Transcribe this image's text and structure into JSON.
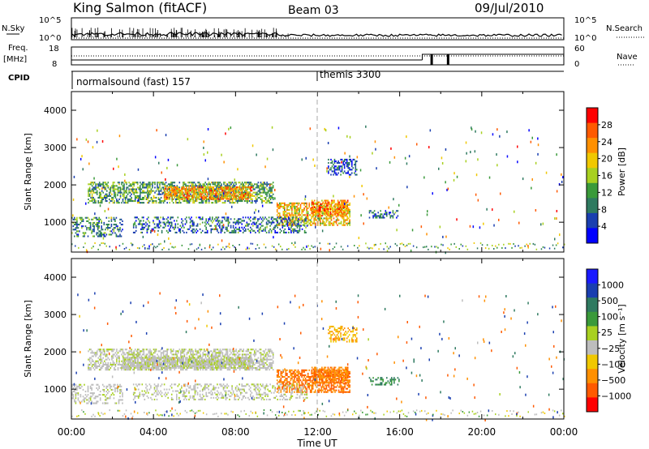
{
  "header": {
    "site": "King Salmon (fitACF)",
    "beam": "Beam 03",
    "date": "09/Jul/2010"
  },
  "summary_panels": {
    "nsky_label": "N.Sky",
    "nsky_ticks": [
      "10^5",
      "10^0"
    ],
    "nsearch_label": "N.Search",
    "nsearch_ticks": [
      "10^5",
      "10^0"
    ],
    "freq_label_top": "Freq.",
    "freq_label_unit": "[MHz]",
    "freq_ticks": [
      "18",
      "8"
    ],
    "nave_label": "Nave",
    "nave_ticks": [
      "60",
      "0"
    ],
    "cpid_label": "CPID",
    "cpid_segments": [
      {
        "label": "normalsound (fast) 157",
        "start_hour": 0,
        "end_hour": 12
      },
      {
        "label": "themis 3300",
        "start_hour": 12,
        "end_hour": 24
      }
    ]
  },
  "colors": {
    "power_scale": [
      "#0000ff",
      "#1a3fb0",
      "#2f7a60",
      "#3a9a3a",
      "#a8d020",
      "#f0c800",
      "#ff9000",
      "#ff5a00",
      "#ff0000"
    ],
    "velocity_scale": [
      "#1a1aff",
      "#1a3fb0",
      "#2f7a60",
      "#3a9a3a",
      "#a8d020",
      "#bdbdbd",
      "#f0c800",
      "#ff9000",
      "#ff5a00",
      "#ff0000"
    ],
    "ground_scatter": "#bdbdbd",
    "marker_line": "#aaaaaa"
  },
  "chart_data": [
    {
      "type": "heatmap",
      "name": "power",
      "ylabel": "Slant Range [km]",
      "colorbar_label": "Power [dB]",
      "colorbar_ticks": [
        "28",
        "24",
        "20",
        "16",
        "12",
        "8",
        "4"
      ],
      "colorbar_range": [
        0,
        32
      ],
      "ylim": [
        200,
        4500
      ],
      "y_ticks": [
        "4000",
        "3000",
        "2000",
        "1000"
      ],
      "xlim": [
        0,
        24
      ],
      "regions": [
        {
          "t0": 0.8,
          "t1": 9.8,
          "r0": 1500,
          "r1": 2050,
          "value": 12,
          "density": 0.55
        },
        {
          "t0": 4.5,
          "t1": 8.8,
          "r0": 1600,
          "r1": 1950,
          "value": 22,
          "density": 0.65
        },
        {
          "t0": 10.0,
          "t1": 13.6,
          "r0": 900,
          "r1": 1500,
          "value": 20,
          "density": 0.6
        },
        {
          "t0": 11.7,
          "t1": 13.5,
          "r0": 1150,
          "r1": 1600,
          "value": 24,
          "density": 0.6
        },
        {
          "t0": 3.0,
          "t1": 11.5,
          "r0": 700,
          "r1": 1150,
          "value": 8,
          "density": 0.35
        },
        {
          "t0": 0.0,
          "t1": 2.5,
          "r0": 600,
          "r1": 1100,
          "value": 10,
          "density": 0.35
        },
        {
          "t0": 12.5,
          "t1": 13.9,
          "r0": 2250,
          "r1": 2700,
          "value": 6,
          "density": 0.45
        },
        {
          "t0": 14.5,
          "t1": 16.0,
          "r0": 1100,
          "r1": 1300,
          "value": 8,
          "density": 0.45
        }
      ]
    },
    {
      "type": "heatmap",
      "name": "velocity",
      "ylabel": "Slant Range [km]",
      "colorbar_label": "Velocity [m s⁻¹]",
      "colorbar_ticks": [
        "1000",
        "500",
        "100",
        "25",
        "−25",
        "−100",
        "−500",
        "−1000"
      ],
      "ylim": [
        200,
        4500
      ],
      "y_ticks": [
        "4000",
        "3000",
        "2000",
        "1000"
      ],
      "xlim": [
        0,
        24
      ],
      "x_ticks": [
        "00:00",
        "04:00",
        "08:00",
        "12:00",
        "16:00",
        "20:00",
        "00:00"
      ],
      "xlabel": "Time UT",
      "regions": [
        {
          "t0": 0.8,
          "t1": 9.8,
          "r0": 1500,
          "r1": 2050,
          "value": 0,
          "density": 0.55
        },
        {
          "t0": 2.5,
          "t1": 8.8,
          "r0": 1550,
          "r1": 1850,
          "value": 0,
          "density": 0.8
        },
        {
          "t0": 10.0,
          "t1": 13.6,
          "r0": 900,
          "r1": 1500,
          "value": -300,
          "density": 0.6
        },
        {
          "t0": 11.7,
          "t1": 13.5,
          "r0": 1150,
          "r1": 1600,
          "value": -250,
          "density": 0.65
        },
        {
          "t0": 3.0,
          "t1": 11.5,
          "r0": 700,
          "r1": 1150,
          "value": 0,
          "density": 0.3
        },
        {
          "t0": 0.0,
          "t1": 2.5,
          "r0": 600,
          "r1": 1100,
          "value": 0,
          "density": 0.3
        },
        {
          "t0": 12.5,
          "t1": 13.9,
          "r0": 2250,
          "r1": 2700,
          "value": -60,
          "density": 0.45
        },
        {
          "t0": 14.5,
          "t1": 16.0,
          "r0": 1100,
          "r1": 1300,
          "value": 60,
          "density": 0.45
        }
      ]
    }
  ]
}
